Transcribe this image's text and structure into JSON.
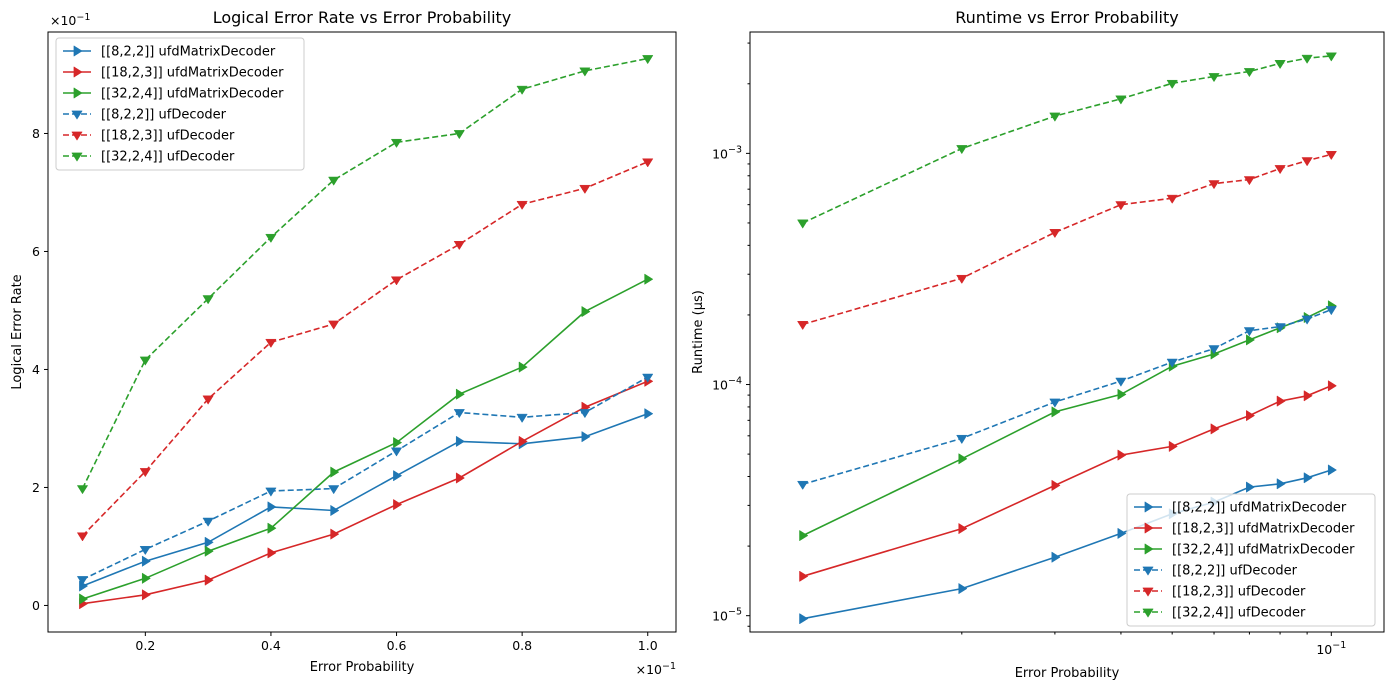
{
  "chart_data": [
    {
      "type": "line",
      "title": "Logical Error Rate vs Error Probability",
      "xlabel": "Error Probability",
      "ylabel": "Logical Error Rate",
      "x_multiplier": "×10",
      "x_multiplier_exp": "−1",
      "y_multiplier": "×10",
      "y_multiplier_exp": "−1",
      "x": [
        0.1,
        0.2,
        0.3,
        0.4,
        0.5,
        0.6,
        0.7,
        0.8,
        0.9,
        1.0
      ],
      "xlim": [
        0.045,
        1.045
      ],
      "ylim": [
        -0.45,
        9.72
      ],
      "xticks": [
        0.2,
        0.4,
        0.6,
        0.8,
        1.0
      ],
      "xtick_labels": [
        "0.2",
        "0.4",
        "0.6",
        "0.8",
        "1.0"
      ],
      "yticks": [
        0,
        2,
        4,
        6,
        8
      ],
      "ytick_labels": [
        "0",
        "2",
        "4",
        "6",
        "8"
      ],
      "grid": false,
      "legend_position": "top-left",
      "series": [
        {
          "name": "[[8,2,2]] ufdMatrixDecoder",
          "color": "#1f77b4",
          "style": "solid",
          "marker": "right-triangle",
          "values": [
            0.33,
            0.75,
            1.07,
            1.67,
            1.61,
            2.2,
            2.78,
            2.74,
            2.86,
            3.25
          ]
        },
        {
          "name": "[[18,2,3]] ufdMatrixDecoder",
          "color": "#d62728",
          "style": "solid",
          "marker": "right-triangle",
          "values": [
            0.03,
            0.18,
            0.43,
            0.89,
            1.21,
            1.71,
            2.16,
            2.78,
            3.36,
            3.8
          ]
        },
        {
          "name": "[[32,2,4]] ufdMatrixDecoder",
          "color": "#2ca02c",
          "style": "solid",
          "marker": "right-triangle",
          "values": [
            0.11,
            0.46,
            0.92,
            1.31,
            2.26,
            2.76,
            3.58,
            4.04,
            4.98,
            5.53
          ]
        },
        {
          "name": "[[8,2,2]] ufDecoder",
          "color": "#1f77b4",
          "style": "dashed",
          "marker": "down-triangle",
          "values": [
            0.44,
            0.95,
            1.43,
            1.94,
            1.98,
            2.62,
            3.27,
            3.19,
            3.27,
            3.87
          ]
        },
        {
          "name": "[[18,2,3]] ufDecoder",
          "color": "#d62728",
          "style": "dashed",
          "marker": "down-triangle",
          "values": [
            1.18,
            2.27,
            3.5,
            4.46,
            4.77,
            5.52,
            6.12,
            6.8,
            7.07,
            7.52
          ]
        },
        {
          "name": "[[32,2,4]] ufDecoder",
          "color": "#2ca02c",
          "style": "dashed",
          "marker": "down-triangle",
          "values": [
            1.98,
            4.16,
            5.2,
            6.24,
            7.21,
            7.85,
            8.0,
            8.75,
            9.06,
            9.27
          ]
        }
      ]
    },
    {
      "type": "line",
      "title": "Runtime vs Error Probability",
      "xlabel": "Error Probability",
      "ylabel": "Runtime (μs)",
      "x_scale": "log",
      "y_scale": "log",
      "x": [
        0.01,
        0.02,
        0.03,
        0.04,
        0.05,
        0.06,
        0.07,
        0.08,
        0.09,
        0.1
      ],
      "xlim": [
        0.00795,
        0.1258
      ],
      "ylim": [
        8.5e-06,
        0.00335
      ],
      "xticks_major": [
        0.1
      ],
      "xtick_major_base": "10",
      "xtick_major_exp": "−1",
      "yticks_major": [
        1e-05,
        0.0001,
        0.001
      ],
      "ytick_major_base": "10",
      "ytick_major_exps": [
        "−5",
        "−4",
        "−3"
      ],
      "grid": false,
      "legend_position": "bottom-right",
      "series": [
        {
          "name": "[[8,2,2]] ufdMatrixDecoder",
          "color": "#1f77b4",
          "style": "solid",
          "marker": "right-triangle",
          "values": [
            9.7e-06,
            1.31e-05,
            1.79e-05,
            2.27e-05,
            2.76e-05,
            3.1e-05,
            3.6e-05,
            3.72e-05,
            3.95e-05,
            4.27e-05
          ]
        },
        {
          "name": "[[18,2,3]] ufdMatrixDecoder",
          "color": "#d62728",
          "style": "solid",
          "marker": "right-triangle",
          "values": [
            1.48e-05,
            2.38e-05,
            3.66e-05,
            4.95e-05,
            5.4e-05,
            6.43e-05,
            7.34e-05,
            8.48e-05,
            8.94e-05,
            9.87e-05
          ]
        },
        {
          "name": "[[32,2,4]] ufdMatrixDecoder",
          "color": "#2ca02c",
          "style": "solid",
          "marker": "right-triangle",
          "values": [
            2.22e-05,
            4.77e-05,
            7.61e-05,
            9.06e-05,
            0.00012,
            0.0001355,
            0.000156,
            0.000176,
            0.000195,
            0.000219
          ]
        },
        {
          "name": "[[8,2,2]] ufDecoder",
          "color": "#1f77b4",
          "style": "dashed",
          "marker": "down-triangle",
          "values": [
            3.7e-05,
            5.85e-05,
            8.4e-05,
            0.0001035,
            0.000125,
            0.000143,
            0.000171,
            0.000178,
            0.000192,
            0.000211
          ]
        },
        {
          "name": "[[18,2,3]] ufDecoder",
          "color": "#d62728",
          "style": "dashed",
          "marker": "down-triangle",
          "values": [
            0.000182,
            0.000288,
            0.000455,
            0.0006,
            0.00064,
            0.00074,
            0.00077,
            0.00086,
            0.00093,
            0.00099
          ]
        },
        {
          "name": "[[32,2,4]] ufDecoder",
          "color": "#2ca02c",
          "style": "dashed",
          "marker": "down-triangle",
          "values": [
            0.0005,
            0.00105,
            0.00145,
            0.00172,
            0.00201,
            0.00215,
            0.00226,
            0.00245,
            0.00258,
            0.00264
          ]
        }
      ]
    }
  ]
}
